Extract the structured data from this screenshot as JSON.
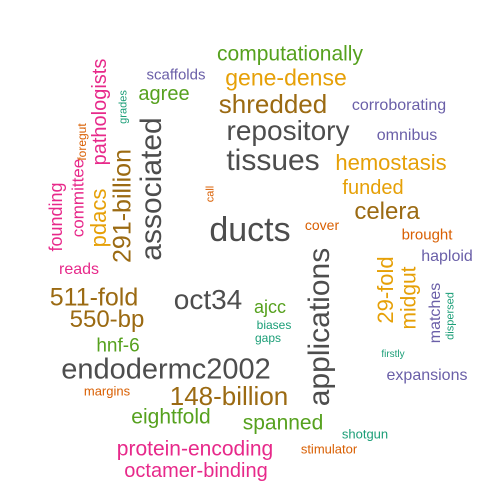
{
  "palette": {
    "dark_gray": "#4d4d4d",
    "brown": "#9b6a12",
    "gold": "#e6a007",
    "orange_red": "#d95f02",
    "magenta": "#e7298a",
    "purple": "#6a5fa8",
    "green": "#56a11e",
    "teal": "#1b9e77"
  },
  "words": [
    {
      "text": "computationally",
      "color": "#56a11e"
    },
    {
      "text": "scaffolds",
      "color": "#6a5fa8"
    },
    {
      "text": "gene-dense",
      "color": "#e6a007"
    },
    {
      "text": "agree",
      "color": "#56a11e"
    },
    {
      "text": "shredded",
      "color": "#9b6a12"
    },
    {
      "text": "corroborating",
      "color": "#6a5fa8"
    },
    {
      "text": "repository",
      "color": "#4d4d4d"
    },
    {
      "text": "omnibus",
      "color": "#6a5fa8"
    },
    {
      "text": "tissues",
      "color": "#4d4d4d"
    },
    {
      "text": "hemostasis",
      "color": "#e6a007"
    },
    {
      "text": "funded",
      "color": "#e6a007"
    },
    {
      "text": "celera",
      "color": "#9b6a12"
    },
    {
      "text": "ducts",
      "color": "#4d4d4d"
    },
    {
      "text": "cover",
      "color": "#d95f02"
    },
    {
      "text": "brought",
      "color": "#d95f02"
    },
    {
      "text": "haploid",
      "color": "#6a5fa8"
    },
    {
      "text": "reads",
      "color": "#e7298a"
    },
    {
      "text": "511-fold",
      "color": "#9b6a12"
    },
    {
      "text": "oct34",
      "color": "#4d4d4d"
    },
    {
      "text": "550-bp",
      "color": "#9b6a12"
    },
    {
      "text": "ajcc",
      "color": "#56a11e"
    },
    {
      "text": "biases",
      "color": "#1b9e77"
    },
    {
      "text": "gaps",
      "color": "#1b9e77"
    },
    {
      "text": "hnf-6",
      "color": "#56a11e"
    },
    {
      "text": "firstly",
      "color": "#1b9e77"
    },
    {
      "text": "endodermc2002",
      "color": "#4d4d4d"
    },
    {
      "text": "expansions",
      "color": "#6a5fa8"
    },
    {
      "text": "margins",
      "color": "#d95f02"
    },
    {
      "text": "148-billion",
      "color": "#9b6a12"
    },
    {
      "text": "eightfold",
      "color": "#56a11e"
    },
    {
      "text": "spanned",
      "color": "#56a11e"
    },
    {
      "text": "shotgun",
      "color": "#1b9e77"
    },
    {
      "text": "protein-encoding",
      "color": "#e7298a"
    },
    {
      "text": "stimulator",
      "color": "#d95f02"
    },
    {
      "text": "octamer-binding",
      "color": "#e7298a"
    },
    {
      "text": "pathologists",
      "color": "#e7298a"
    },
    {
      "text": "grades",
      "color": "#1b9e77"
    },
    {
      "text": "foregut",
      "color": "#d95f02"
    },
    {
      "text": "associated",
      "color": "#4d4d4d"
    },
    {
      "text": "291-billion",
      "color": "#9b6a12"
    },
    {
      "text": "committee",
      "color": "#e7298a"
    },
    {
      "text": "pdacs",
      "color": "#e6a007"
    },
    {
      "text": "founding",
      "color": "#e7298a"
    },
    {
      "text": "call",
      "color": "#d95f02"
    },
    {
      "text": "applications",
      "color": "#4d4d4d"
    },
    {
      "text": "29-fold",
      "color": "#e6a007"
    },
    {
      "text": "midgut",
      "color": "#e6a007"
    },
    {
      "text": "matches",
      "color": "#6a5fa8"
    },
    {
      "text": "dispersed",
      "color": "#1b9e77"
    }
  ]
}
